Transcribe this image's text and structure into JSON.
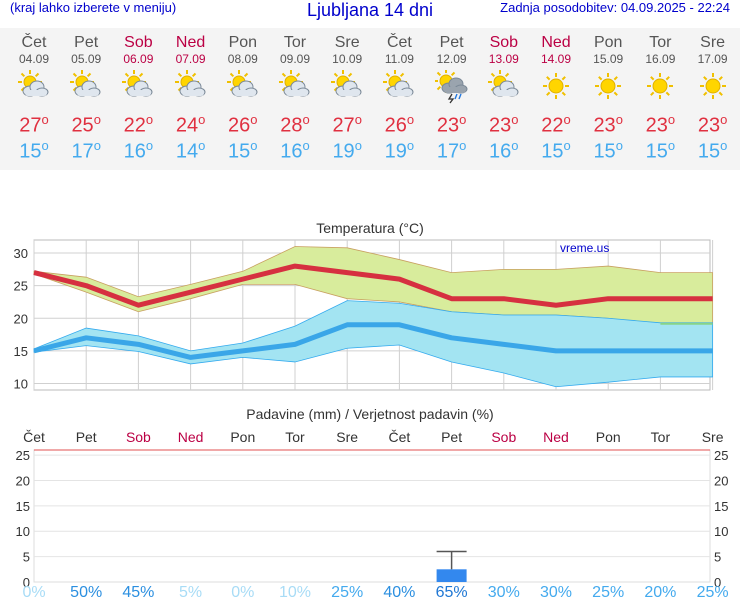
{
  "header": {
    "left_note": "(kraj lahko izberete v meniju)",
    "title": "Ljubljana 14 dni",
    "updated": "Zadnja posodobitev: 04.09.2025 - 22:24"
  },
  "days": [
    {
      "name": "Čet",
      "date": "04.09",
      "weekend": false,
      "icon": "partly-cloudy-icon",
      "tmax": "27",
      "tmin": "15"
    },
    {
      "name": "Pet",
      "date": "05.09",
      "weekend": false,
      "icon": "partly-cloudy-icon",
      "tmax": "25",
      "tmin": "17"
    },
    {
      "name": "Sob",
      "date": "06.09",
      "weekend": true,
      "icon": "partly-cloudy-icon",
      "tmax": "22",
      "tmin": "16"
    },
    {
      "name": "Ned",
      "date": "07.09",
      "weekend": true,
      "icon": "partly-cloudy-icon",
      "tmax": "24",
      "tmin": "14"
    },
    {
      "name": "Pon",
      "date": "08.09",
      "weekend": false,
      "icon": "partly-cloudy-icon",
      "tmax": "26",
      "tmin": "15"
    },
    {
      "name": "Tor",
      "date": "09.09",
      "weekend": false,
      "icon": "partly-cloudy-icon",
      "tmax": "28",
      "tmin": "16"
    },
    {
      "name": "Sre",
      "date": "10.09",
      "weekend": false,
      "icon": "partly-cloudy-icon",
      "tmax": "27",
      "tmin": "19"
    },
    {
      "name": "Čet",
      "date": "11.09",
      "weekend": false,
      "icon": "partly-cloudy-icon",
      "tmax": "26",
      "tmin": "19"
    },
    {
      "name": "Pet",
      "date": "12.09",
      "weekend": false,
      "icon": "thunderstorm-icon",
      "tmax": "23",
      "tmin": "17"
    },
    {
      "name": "Sob",
      "date": "13.09",
      "weekend": true,
      "icon": "partly-cloudy-icon",
      "tmax": "23",
      "tmin": "16"
    },
    {
      "name": "Ned",
      "date": "14.09",
      "weekend": true,
      "icon": "sunny-icon",
      "tmax": "22",
      "tmin": "15"
    },
    {
      "name": "Pon",
      "date": "15.09",
      "weekend": false,
      "icon": "sunny-icon",
      "tmax": "23",
      "tmin": "15"
    },
    {
      "name": "Tor",
      "date": "16.09",
      "weekend": false,
      "icon": "sunny-icon",
      "tmax": "23",
      "tmin": "15"
    },
    {
      "name": "Sre",
      "date": "17.09",
      "weekend": false,
      "icon": "sunny-icon",
      "tmax": "23",
      "tmin": "15"
    }
  ],
  "degree_symbol": "o",
  "chart_data": [
    {
      "type": "line",
      "title": "Temperatura (°C)",
      "watermark": "vreme.us",
      "ylim": [
        9,
        32
      ],
      "yticks": [
        10,
        15,
        20,
        25,
        30
      ],
      "x": [
        "04.09",
        "05.09",
        "06.09",
        "07.09",
        "08.09",
        "09.09",
        "10.09",
        "11.09",
        "12.09",
        "13.09",
        "14.09",
        "15.09",
        "16.09",
        "17.09"
      ],
      "series": [
        {
          "role": "max",
          "color": "#d63040",
          "values": [
            27,
            25,
            22,
            24,
            26,
            28,
            27,
            26,
            23,
            23,
            22,
            23,
            23,
            23
          ]
        },
        {
          "role": "min",
          "color": "#3aa6e8",
          "values": [
            15,
            17,
            16,
            14,
            15,
            16,
            19,
            19,
            17,
            16,
            15,
            15,
            15,
            15
          ]
        },
        {
          "role": "max_range_high",
          "values": [
            27.2,
            26.3,
            23.3,
            25.2,
            27.2,
            31,
            30.8,
            29,
            27,
            27.5,
            27.5,
            28,
            27,
            27
          ]
        },
        {
          "role": "max_range_low",
          "values": [
            26.8,
            24,
            21,
            23,
            25.2,
            25.2,
            23,
            22.5,
            21,
            20.5,
            20.5,
            20,
            19,
            19
          ]
        },
        {
          "role": "min_range_high",
          "values": [
            15.3,
            18.5,
            17.3,
            15,
            16.2,
            18.8,
            22.7,
            22.3,
            21,
            20.5,
            20.5,
            20,
            19.3,
            19.3
          ]
        },
        {
          "role": "min_range_low",
          "values": [
            14.8,
            15.8,
            14.9,
            13,
            14,
            13.3,
            15.4,
            15.9,
            13.3,
            11.6,
            9.5,
            10.2,
            11,
            11
          ]
        }
      ],
      "colors": {
        "max_band": "#d8ec9c",
        "min_band": "#a3e4f2",
        "overlap": "#88d488",
        "grid": "#d0d0d0"
      }
    },
    {
      "type": "bar",
      "title": "Padavine (mm) / Verjetnost padavin (%)",
      "ylim": [
        0,
        26
      ],
      "yticks": [
        0,
        5,
        10,
        15,
        20,
        25
      ],
      "categories": [
        "Čet",
        "Pet",
        "Sob",
        "Ned",
        "Pon",
        "Tor",
        "Sre",
        "Čet",
        "Pet",
        "Sob",
        "Ned",
        "Pon",
        "Tor",
        "Sre"
      ],
      "weekend": [
        false,
        false,
        true,
        true,
        false,
        false,
        false,
        false,
        false,
        true,
        true,
        false,
        false,
        false
      ],
      "values": [
        0,
        0,
        0,
        0,
        0,
        0,
        0,
        0,
        2.5,
        0,
        0,
        0,
        0,
        0
      ],
      "error_high": [
        null,
        null,
        null,
        null,
        null,
        null,
        null,
        null,
        6,
        null,
        null,
        null,
        null,
        null
      ],
      "probability": [
        "0%",
        "50%",
        "45%",
        "5%",
        "0%",
        "10%",
        "25%",
        "40%",
        "65%",
        "30%",
        "30%",
        "25%",
        "20%",
        "25%"
      ],
      "probability_values": [
        0,
        50,
        45,
        5,
        0,
        10,
        25,
        40,
        65,
        30,
        30,
        25,
        20,
        25
      ],
      "colors": {
        "bar": "#3388ee",
        "error": "#555555",
        "border": "#e05050"
      }
    }
  ]
}
